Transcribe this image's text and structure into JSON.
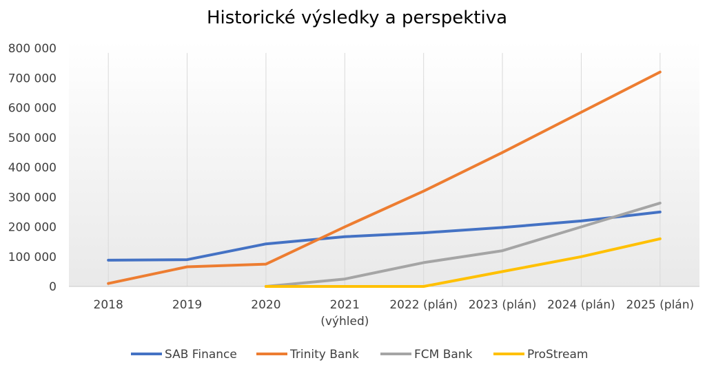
{
  "chart_data": {
    "type": "line",
    "title": "Historické výsledky a perspektiva",
    "xlabel": "",
    "ylabel": "",
    "categories": [
      [
        "2018"
      ],
      [
        "2019"
      ],
      [
        "2020"
      ],
      [
        "2021",
        "(výhled)"
      ],
      [
        "2022 (plán)"
      ],
      [
        "2023 (plán)"
      ],
      [
        "2024 (plán)"
      ],
      [
        "2025 (plán)"
      ]
    ],
    "ylim": [
      0,
      800000
    ],
    "yticks": [
      "0",
      "100 000",
      "200 000",
      "300 000",
      "400 000",
      "500 000",
      "600 000",
      "700 000",
      "800 000"
    ],
    "ytick_values": [
      0,
      100000,
      200000,
      300000,
      400000,
      500000,
      600000,
      700000,
      800000
    ],
    "grid": "vertical category lines",
    "legend_position": "bottom",
    "series": [
      {
        "name": "SAB Finance",
        "color": "#4472C4",
        "values": [
          88000,
          90000,
          143000,
          167000,
          180000,
          198000,
          220000,
          250000
        ]
      },
      {
        "name": "Trinity Bank",
        "color": "#ED7D31",
        "values": [
          10000,
          66000,
          75000,
          200000,
          320000,
          450000,
          585000,
          720000
        ]
      },
      {
        "name": "FCM Bank",
        "color": "#A5A5A5",
        "values": [
          null,
          null,
          0,
          25000,
          80000,
          120000,
          200000,
          280000
        ]
      },
      {
        "name": "ProStream",
        "color": "#FFC000",
        "values": [
          null,
          null,
          0,
          0,
          0,
          50000,
          100000,
          160000
        ]
      }
    ]
  }
}
